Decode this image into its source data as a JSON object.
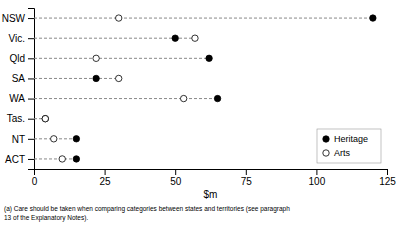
{
  "chart_data": {
    "type": "dot",
    "orientation": "horizontal",
    "categories": [
      "NSW",
      "Vic.",
      "Qld",
      "SA",
      "WA",
      "Tas.",
      "NT",
      "ACT"
    ],
    "series": [
      {
        "name": "Heritage",
        "color": "black",
        "marker": "circle",
        "values": [
          120,
          50,
          62,
          22,
          65,
          4,
          15,
          15
        ]
      },
      {
        "name": "Arts",
        "color": "black",
        "marker": "circle-open",
        "values": [
          30,
          57,
          22,
          30,
          53,
          4,
          7,
          10
        ]
      }
    ],
    "xlim": [
      0,
      125
    ],
    "xticks": [
      0,
      25,
      50,
      75,
      100,
      125
    ],
    "xlabel": "$m",
    "line_style": "dashed",
    "legend": "lower right",
    "annotations": [
      "(a) Care should be taken when comparing categories between states and territories (see paragraph",
      "13 of the Explanatory Notes)."
    ]
  }
}
